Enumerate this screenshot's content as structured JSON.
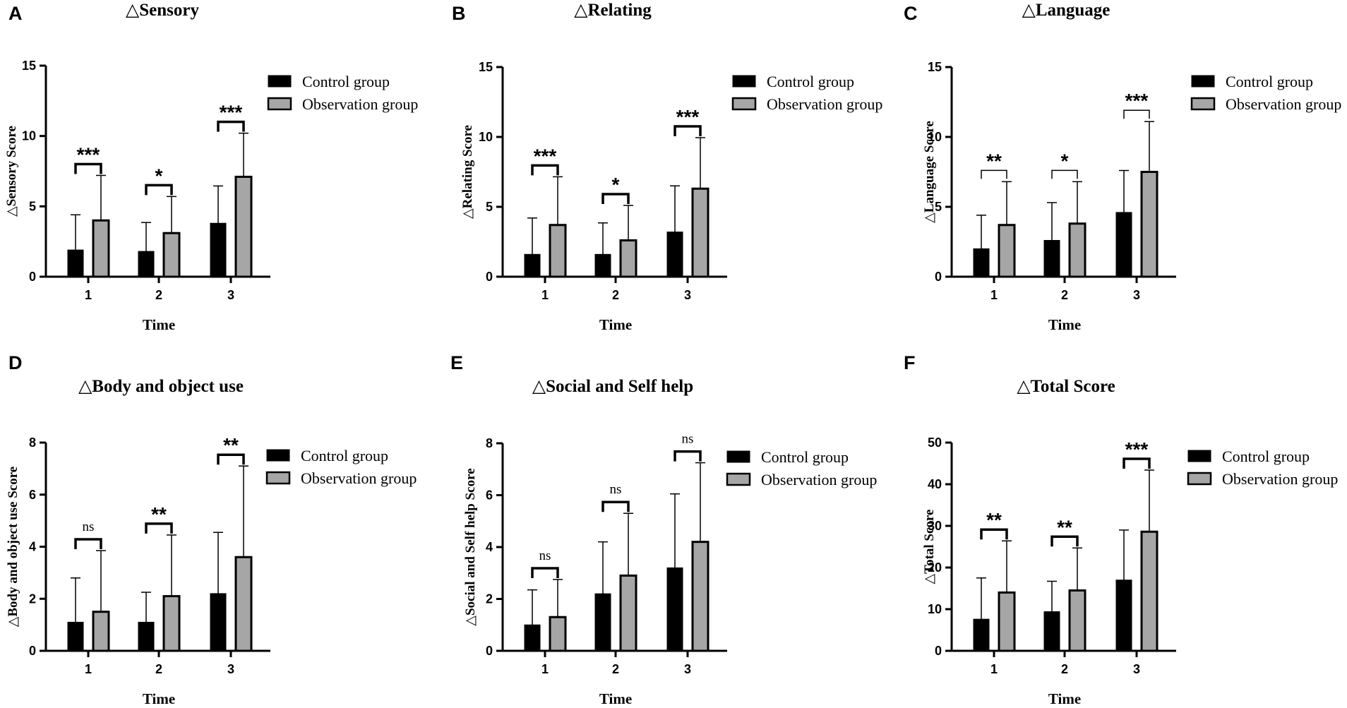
{
  "chart_data": [
    {
      "panel": "A",
      "type": "bar",
      "title": "△Sensory",
      "xlabel": "Time",
      "ylabel": "△Sensory Score",
      "categories": [
        "1",
        "2",
        "3"
      ],
      "ylim": [
        0,
        15
      ],
      "yticks": [
        0,
        5,
        10,
        15
      ],
      "series": [
        {
          "name": "Control group",
          "color": "#000000",
          "values": [
            1.9,
            1.8,
            3.8
          ],
          "errors": [
            2.5,
            2.05,
            2.65
          ]
        },
        {
          "name": "Observation group",
          "color": "#a6a6a6",
          "values": [
            4.0,
            3.1,
            7.1
          ],
          "errors": [
            3.2,
            2.6,
            3.1
          ]
        }
      ],
      "significance": [
        "***",
        "*",
        "***"
      ]
    },
    {
      "panel": "B",
      "type": "bar",
      "title": "△Relating",
      "xlabel": "Time",
      "ylabel": "△Relating Score",
      "categories": [
        "1",
        "2",
        "3"
      ],
      "ylim": [
        0,
        15
      ],
      "yticks": [
        0,
        5,
        10,
        15
      ],
      "series": [
        {
          "name": "Control group",
          "color": "#000000",
          "values": [
            1.6,
            1.6,
            3.2
          ],
          "errors": [
            2.6,
            2.25,
            3.3
          ]
        },
        {
          "name": "Observation group",
          "color": "#a6a6a6",
          "values": [
            3.7,
            2.6,
            6.3
          ],
          "errors": [
            3.45,
            2.5,
            3.65
          ]
        }
      ],
      "significance": [
        "***",
        "*",
        "***"
      ]
    },
    {
      "panel": "C",
      "type": "bar",
      "title": "△Language",
      "xlabel": "Time",
      "ylabel": "△Language Score",
      "categories": [
        "1",
        "2",
        "3"
      ],
      "ylim": [
        0,
        15
      ],
      "yticks": [
        0,
        5,
        10,
        15
      ],
      "series": [
        {
          "name": "Control group",
          "color": "#000000",
          "values": [
            2.0,
            2.6,
            4.6
          ],
          "errors": [
            2.4,
            2.7,
            3.0
          ]
        },
        {
          "name": "Observation group",
          "color": "#a6a6a6",
          "values": [
            3.7,
            3.8,
            7.5
          ],
          "errors": [
            3.1,
            3.0,
            3.6
          ]
        }
      ],
      "significance": [
        "**",
        "*",
        "***"
      ]
    },
    {
      "panel": "D",
      "type": "bar",
      "title": "△Body and object use",
      "xlabel": "Time",
      "ylabel": "△Body and object use Score",
      "categories": [
        "1",
        "2",
        "3"
      ],
      "ylim": [
        0,
        8
      ],
      "yticks": [
        0,
        2,
        4,
        6,
        8
      ],
      "series": [
        {
          "name": "Control group",
          "color": "#000000",
          "values": [
            1.1,
            1.1,
            2.2
          ],
          "errors": [
            1.7,
            1.15,
            2.35
          ]
        },
        {
          "name": "Observation group",
          "color": "#a6a6a6",
          "values": [
            1.5,
            2.1,
            3.6
          ],
          "errors": [
            2.35,
            2.35,
            3.5
          ]
        }
      ],
      "significance": [
        "ns",
        "**",
        "**"
      ]
    },
    {
      "panel": "E",
      "type": "bar",
      "title": "△Social and Self help",
      "xlabel": "Time",
      "ylabel": "△Social and Self help Score",
      "categories": [
        "1",
        "2",
        "3"
      ],
      "ylim": [
        0,
        8
      ],
      "yticks": [
        0,
        2,
        4,
        6,
        8
      ],
      "series": [
        {
          "name": "Control group",
          "color": "#000000",
          "values": [
            1.0,
            2.2,
            3.2
          ],
          "errors": [
            1.35,
            2.0,
            2.85
          ]
        },
        {
          "name": "Observation group",
          "color": "#a6a6a6",
          "values": [
            1.3,
            2.9,
            4.2
          ],
          "errors": [
            1.45,
            2.4,
            3.05
          ]
        }
      ],
      "significance": [
        "ns",
        "ns",
        "ns"
      ]
    },
    {
      "panel": "F",
      "type": "bar",
      "title": "△Total Score",
      "xlabel": "Time",
      "ylabel": "△Total Score",
      "categories": [
        "1",
        "2",
        "3"
      ],
      "ylim": [
        0,
        50
      ],
      "yticks": [
        0,
        10,
        20,
        30,
        40,
        50
      ],
      "series": [
        {
          "name": "Control group",
          "color": "#000000",
          "values": [
            7.6,
            9.4,
            17.0
          ],
          "errors": [
            9.9,
            7.3,
            12.0
          ]
        },
        {
          "name": "Observation group",
          "color": "#a6a6a6",
          "values": [
            14.0,
            14.5,
            28.6
          ],
          "errors": [
            12.4,
            10.2,
            14.8
          ]
        }
      ],
      "significance": [
        "**",
        "**",
        "***"
      ]
    }
  ]
}
